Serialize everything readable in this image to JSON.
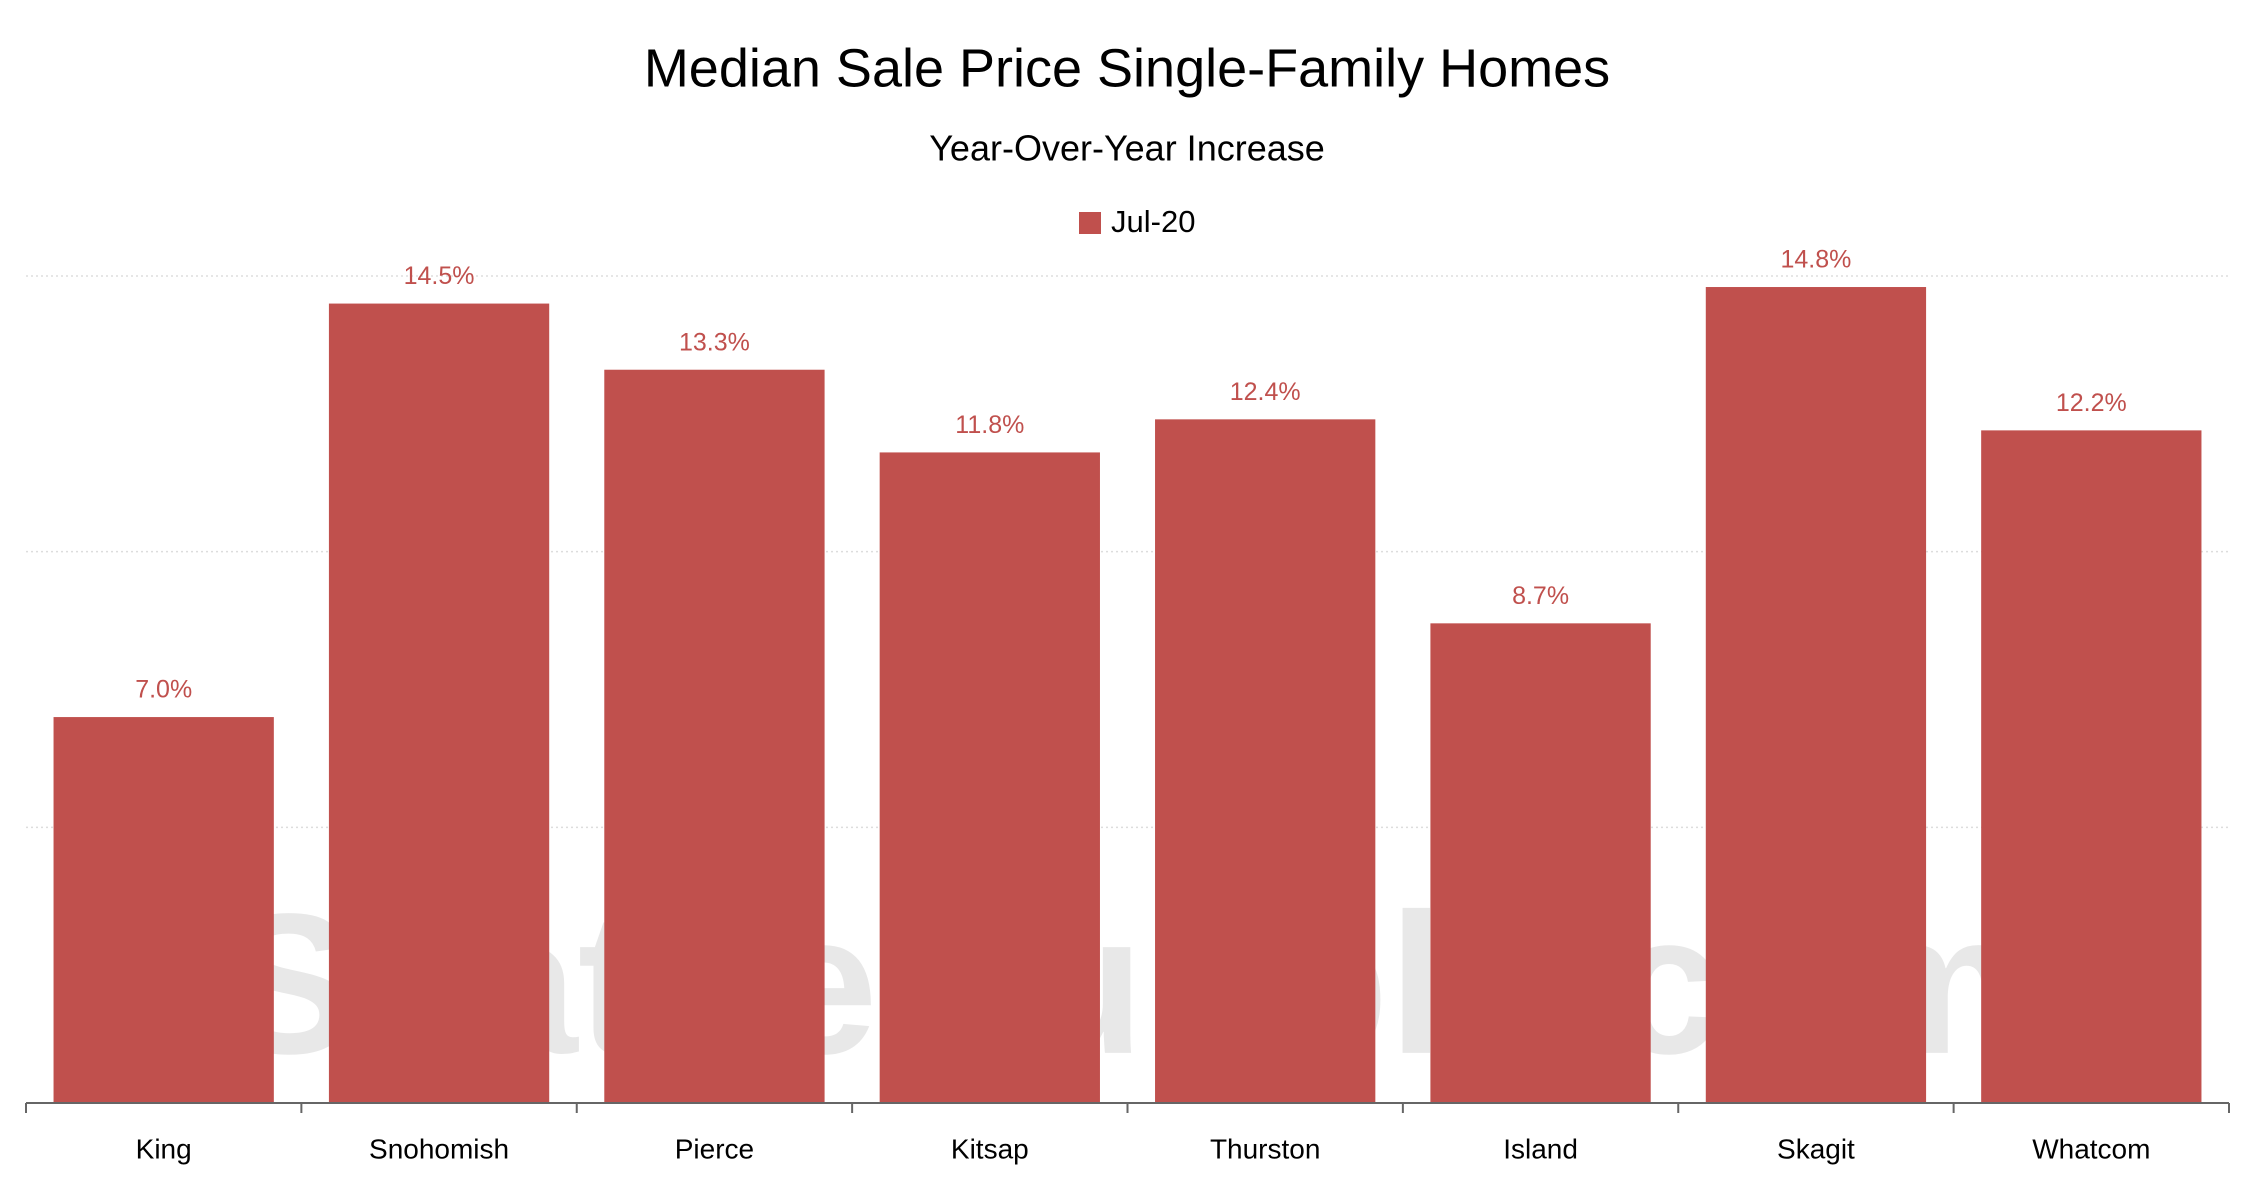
{
  "chart_data": {
    "type": "bar",
    "title": "Median Sale Price Single-Family Homes",
    "subtitle": "Year-Over-Year Increase",
    "watermark": "SeattleBubble.com",
    "categories": [
      "King",
      "Snohomish",
      "Pierce",
      "Kitsap",
      "Thurston",
      "Island",
      "Skagit",
      "Whatcom"
    ],
    "series": [
      {
        "name": "Jul-20",
        "color": "#c0504d",
        "values": [
          7.0,
          14.5,
          13.3,
          11.8,
          12.4,
          8.7,
          14.8,
          12.2
        ],
        "value_labels": [
          "7.0%",
          "14.5%",
          "13.3%",
          "11.8%",
          "12.4%",
          "8.7%",
          "14.8%",
          "12.2%"
        ]
      }
    ],
    "ylim": [
      0,
      15
    ],
    "yticks": [
      0,
      5,
      10,
      15
    ],
    "grid": true,
    "legend": "top"
  }
}
